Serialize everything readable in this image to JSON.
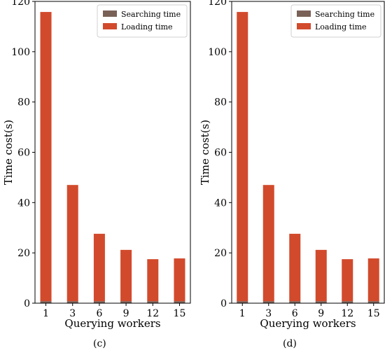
{
  "chart_data": [
    {
      "type": "bar",
      "stacked": true,
      "panel_label": "(c)",
      "title": "",
      "xlabel": "Querying workers",
      "ylabel": "Time cost(s)",
      "categories": [
        "1",
        "3",
        "6",
        "9",
        "12",
        "15"
      ],
      "ylim": [
        0,
        120
      ],
      "yticks": [
        0,
        20,
        40,
        60,
        80,
        100,
        120
      ],
      "grid": false,
      "legend": "top-right",
      "series": [
        {
          "name": "Searching time",
          "color": "#7a6157",
          "values": [
            0.8,
            0.8,
            0.8,
            0.8,
            0.8,
            0.8
          ]
        },
        {
          "name": "Loading time",
          "color": "#d24a2c",
          "values": [
            115.0,
            46.2,
            26.8,
            20.4,
            16.7,
            17.0
          ]
        }
      ]
    },
    {
      "type": "bar",
      "stacked": true,
      "panel_label": "(d)",
      "title": "",
      "xlabel": "Querying workers",
      "ylabel": "Time cost(s)",
      "categories": [
        "1",
        "3",
        "6",
        "9",
        "12",
        "15"
      ],
      "ylim": [
        0,
        120
      ],
      "yticks": [
        0,
        20,
        40,
        60,
        80,
        100,
        120
      ],
      "grid": false,
      "legend": "top-right",
      "series": [
        {
          "name": "Searching time",
          "color": "#7a6157",
          "values": [
            0.8,
            0.8,
            0.8,
            0.8,
            0.8,
            0.8
          ]
        },
        {
          "name": "Loading time",
          "color": "#d24a2c",
          "values": [
            115.0,
            46.2,
            26.8,
            20.4,
            16.7,
            17.0
          ]
        }
      ]
    }
  ]
}
